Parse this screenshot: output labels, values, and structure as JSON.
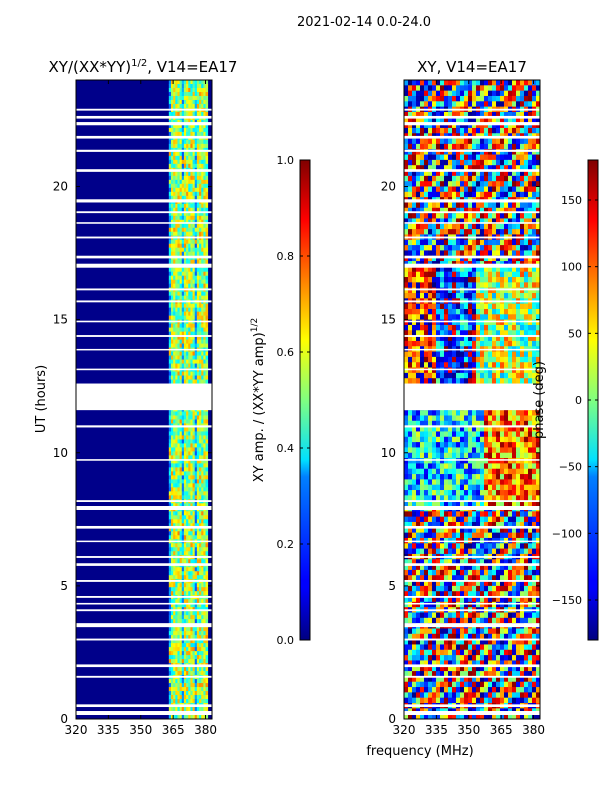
{
  "chart_data": {
    "suptitle": "2021-02-14 0.0-24.0",
    "shared_xlabel": "frequency (MHz)",
    "panels": [
      {
        "type": "heatmap",
        "title_main": "XY/(XX*YY)",
        "title_sup": "1/2",
        "title_rest": ", V14=EA17",
        "ylabel": "UT (hours)",
        "xlim": [
          320,
          383
        ],
        "ylim": [
          0,
          24
        ],
        "xticks": [
          320,
          335,
          350,
          365,
          380
        ],
        "yticks": [
          0,
          5,
          10,
          15,
          20
        ],
        "colorbar": {
          "label_main": "XY amp. / (XX*YY amp)",
          "label_sup": "1/2",
          "range": [
            0.0,
            1.0
          ],
          "ticks": [
            "0.0",
            "0.2",
            "0.4",
            "0.6",
            "0.8",
            "1.0"
          ],
          "tick_values": [
            0.0,
            0.2,
            0.4,
            0.6,
            0.8,
            1.0
          ]
        }
      },
      {
        "type": "heatmap",
        "title_main": "XY, V14=EA17",
        "ylabel": "phase (deg)",
        "xlim": [
          320,
          383
        ],
        "ylim": [
          0,
          24
        ],
        "xticks": [
          320,
          335,
          350,
          365,
          380
        ],
        "yticks": [
          0,
          5,
          10,
          15,
          20
        ],
        "colorbar": {
          "range": [
            -180,
            180
          ],
          "ticks": [
            "−150",
            "−100",
            "−50",
            "0",
            "50",
            "100",
            "150"
          ],
          "tick_values": [
            -150,
            -100,
            -50,
            0,
            50,
            100,
            150
          ]
        }
      }
    ],
    "flagged_gaps_hours": [
      [
        0.15,
        0.3
      ],
      [
        0.45,
        0.55
      ],
      [
        1.55,
        1.62
      ],
      [
        1.95,
        2.05
      ],
      [
        2.95,
        3.02
      ],
      [
        3.45,
        3.6
      ],
      [
        4.05,
        4.12
      ],
      [
        4.3,
        4.36
      ],
      [
        4.55,
        4.62
      ],
      [
        5.15,
        5.22
      ],
      [
        5.75,
        5.85
      ],
      [
        6.05,
        6.12
      ],
      [
        6.65,
        6.7
      ],
      [
        7.15,
        7.25
      ],
      [
        7.85,
        8.0
      ],
      [
        8.15,
        8.22
      ],
      [
        9.7,
        9.76
      ],
      [
        10.95,
        11.03
      ],
      [
        11.6,
        12.6
      ],
      [
        13.1,
        13.16
      ],
      [
        13.85,
        13.9
      ],
      [
        14.35,
        14.42
      ],
      [
        14.9,
        14.96
      ],
      [
        15.65,
        15.72
      ],
      [
        16.1,
        16.17
      ],
      [
        16.95,
        17.1
      ],
      [
        17.3,
        17.4
      ],
      [
        18.05,
        18.12
      ],
      [
        18.6,
        18.66
      ],
      [
        19.0,
        19.07
      ],
      [
        19.4,
        19.52
      ],
      [
        20.55,
        20.65
      ],
      [
        21.3,
        21.38
      ],
      [
        21.8,
        21.9
      ],
      [
        22.3,
        22.42
      ],
      [
        22.55,
        22.65
      ],
      [
        22.85,
        22.92
      ]
    ]
  }
}
